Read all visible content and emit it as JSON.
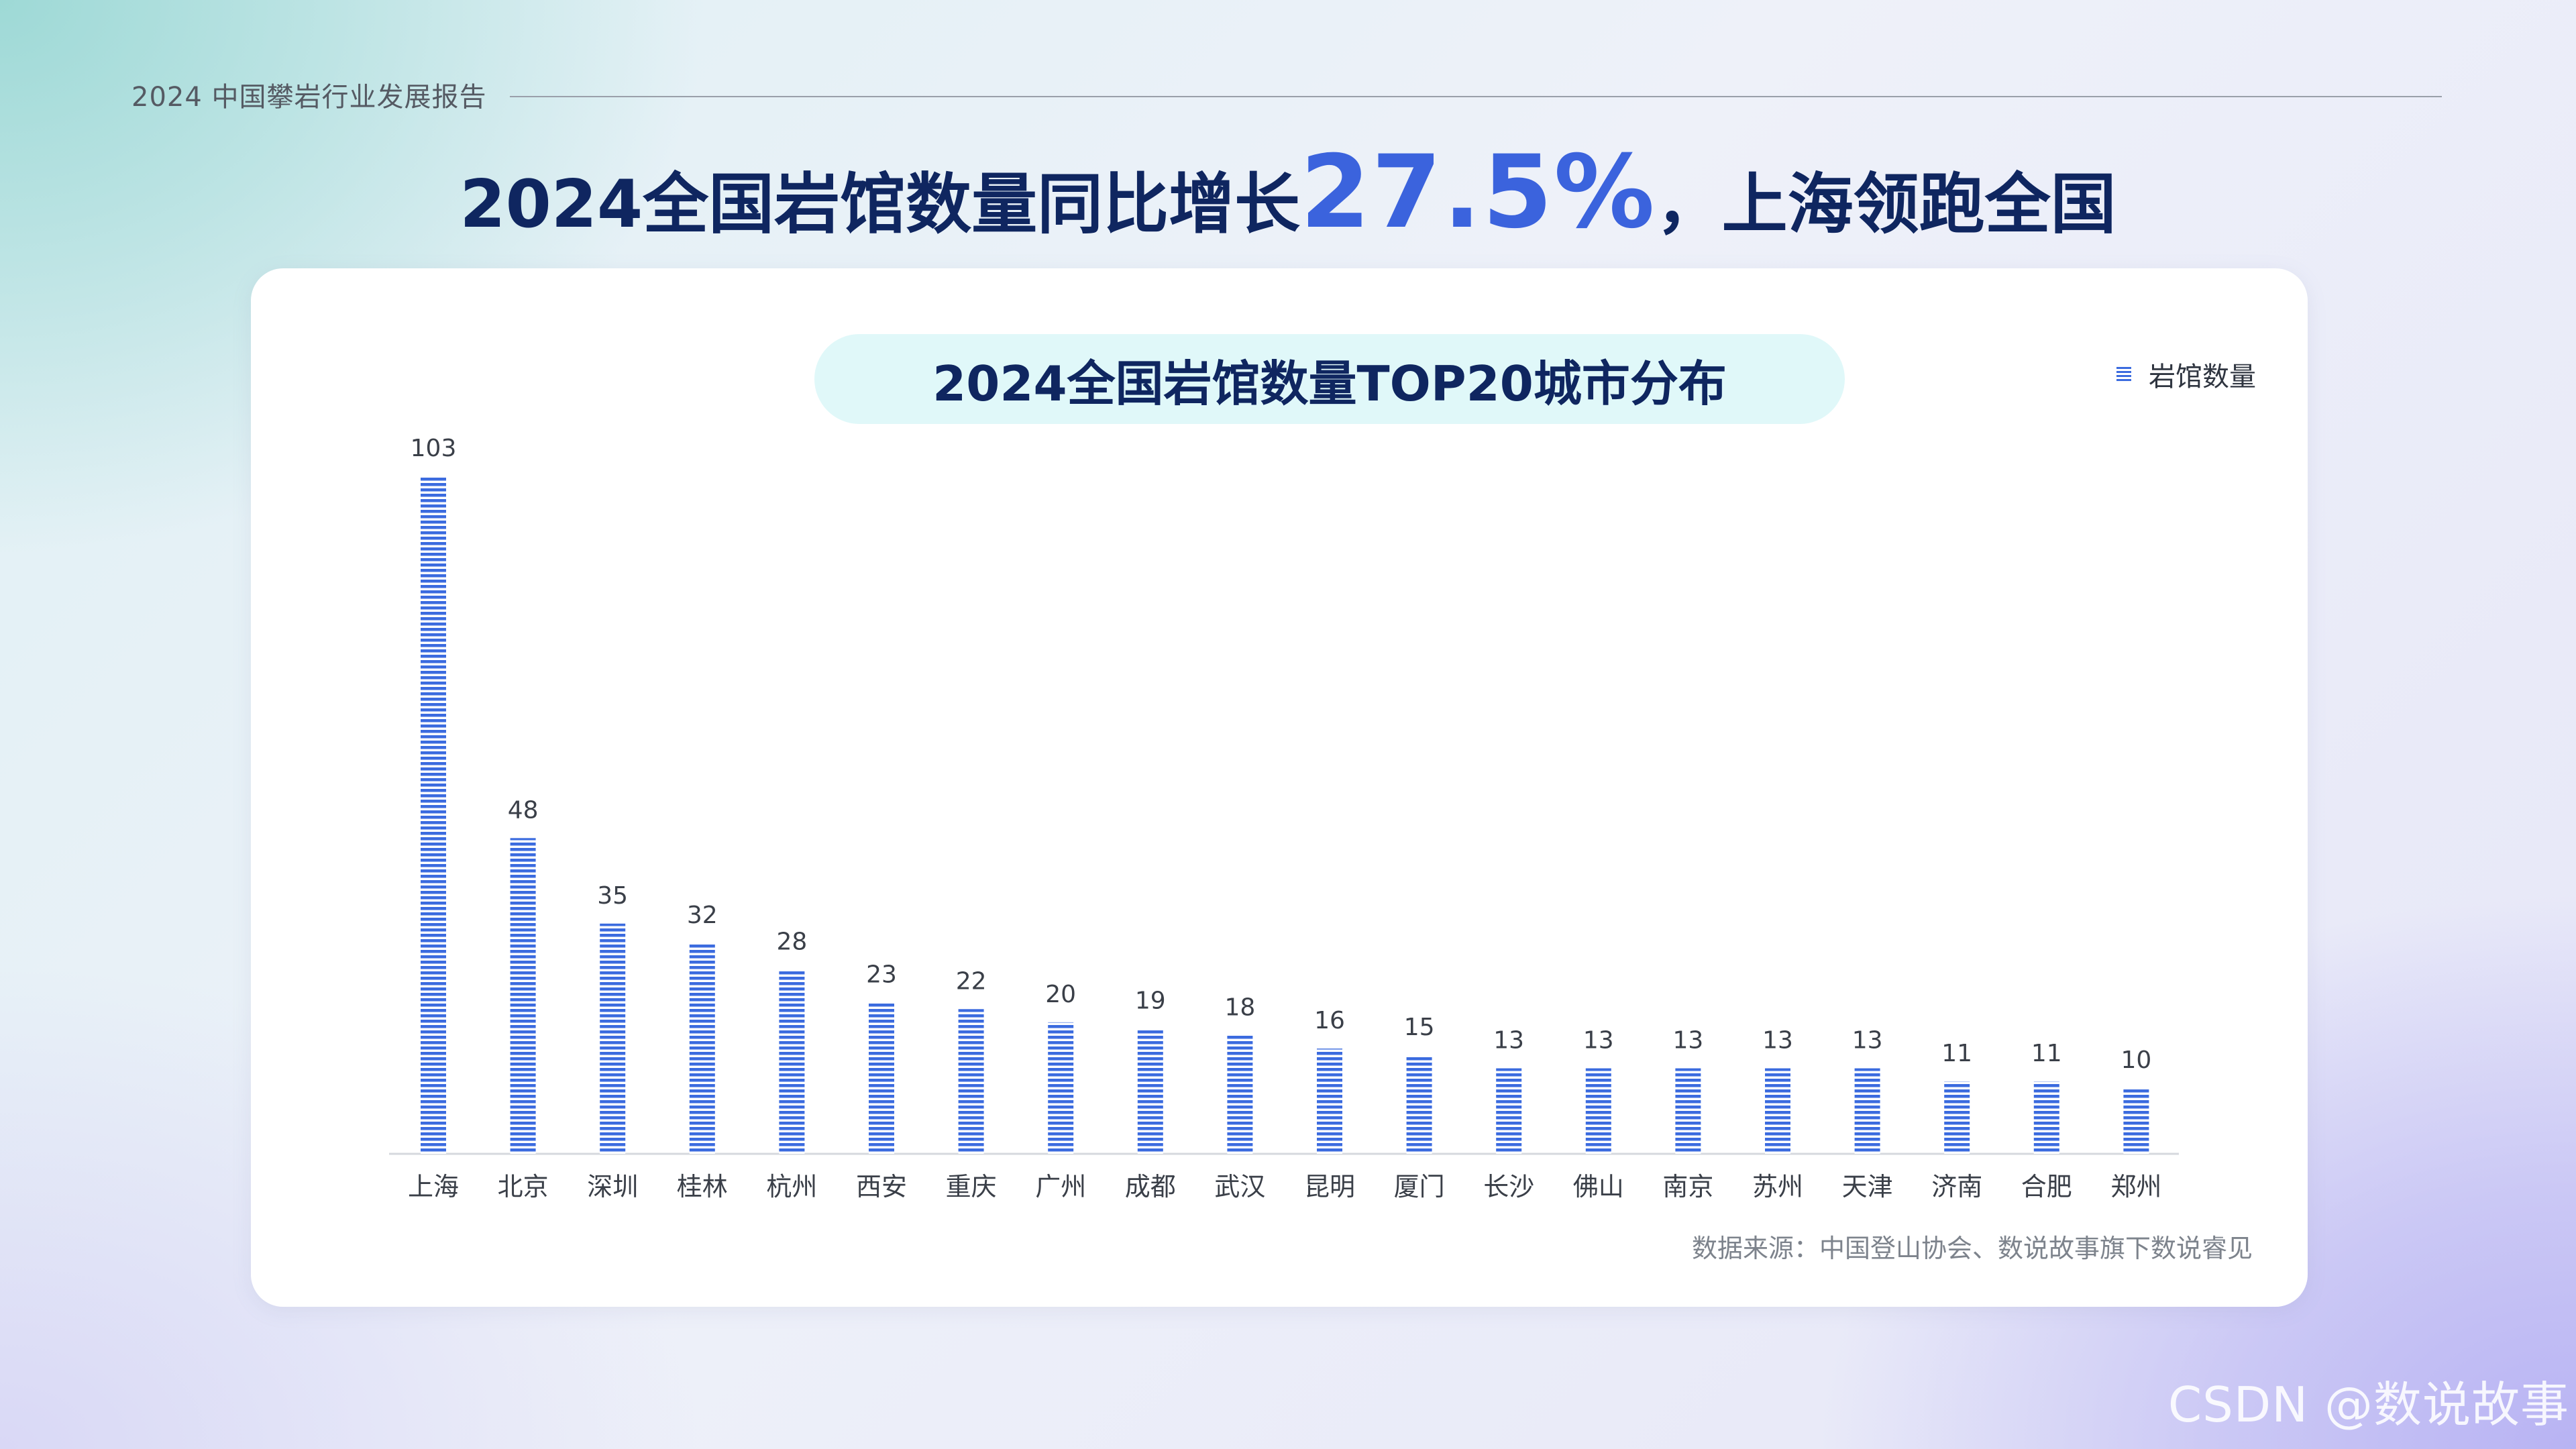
{
  "header": {
    "report_title": "2024  中国攀岩行业发展报告",
    "headline_prefix": "2024全国岩馆数量同比增长",
    "headline_highlight": "27.5%",
    "headline_suffix": "，上海领跑全国"
  },
  "source_note": "数据来源：中国登山协会、数说故事旗下数说睿见",
  "watermark": "CSDN @数说故事",
  "colors": {
    "bar": "#3b6bdf",
    "headline": "#0f2660",
    "highlight": "#3b63dd",
    "title_pill": "#e0f8f9"
  },
  "chart_data": {
    "type": "bar",
    "title": "2024全国岩馆数量TOP20城市分布",
    "legend_position": "top-right",
    "grid": false,
    "categories": [
      "上海",
      "北京",
      "深圳",
      "桂林",
      "杭州",
      "西安",
      "重庆",
      "广州",
      "成都",
      "武汉",
      "昆明",
      "厦门",
      "长沙",
      "佛山",
      "南京",
      "苏州",
      "天津",
      "济南",
      "合肥",
      "郑州"
    ],
    "series": [
      {
        "name": "岩馆数量",
        "values": [
          103,
          48,
          35,
          32,
          28,
          23,
          22,
          20,
          19,
          18,
          16,
          15,
          13,
          13,
          13,
          13,
          13,
          11,
          11,
          10
        ]
      }
    ],
    "ylim": [
      0,
      103
    ]
  }
}
